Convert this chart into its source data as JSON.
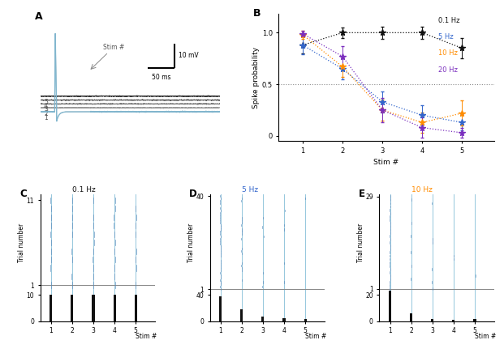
{
  "panel_A_label": "A",
  "panel_B_label": "B",
  "panel_C_label": "C",
  "panel_D_label": "D",
  "panel_E_label": "E",
  "B_stim": [
    1,
    2,
    3,
    4,
    5
  ],
  "B_0hz": [
    0.88,
    1.0,
    1.0,
    1.0,
    0.85
  ],
  "B_5hz": [
    0.88,
    0.65,
    0.33,
    0.2,
    0.13
  ],
  "B_10hz": [
    0.98,
    0.67,
    0.25,
    0.13,
    0.22
  ],
  "B_20hz": [
    0.99,
    0.77,
    0.25,
    0.08,
    0.03
  ],
  "B_0hz_err": [
    0.08,
    0.05,
    0.06,
    0.06,
    0.1
  ],
  "B_5hz_err": [
    0.09,
    0.1,
    0.1,
    0.1,
    0.08
  ],
  "B_10hz_err": [
    0.04,
    0.1,
    0.1,
    0.1,
    0.12
  ],
  "B_20hz_err": [
    0.03,
    0.1,
    0.12,
    0.1,
    0.05
  ],
  "color_0hz": "#111111",
  "color_5hz": "#3366CC",
  "color_10hz": "#FF8C00",
  "color_20hz": "#7B2FBE",
  "ylabel_B": "Spike probability",
  "xlabel_B": "Stim #",
  "C_title": "0.1 Hz",
  "D_title": "5 Hz",
  "E_title": "10 Hz",
  "C_raster_max_trial": 11,
  "D_raster_max_trial": 40,
  "E_raster_max_trial": 29,
  "C_hist_max": 10,
  "D_hist_max": 40,
  "E_hist_max": 20,
  "raster_stim_color": "#7ab8d4",
  "raster_dot_color": "#5588bb",
  "hist_color": "#111111",
  "scalebar_label_mv": "10 mV",
  "scalebar_label_ms": "50 ms",
  "bg_color": "#ffffff",
  "C_probs": [
    0.95,
    0.92,
    0.9,
    0.9,
    0.88
  ],
  "D_probs": [
    0.95,
    0.45,
    0.18,
    0.12,
    0.08
  ],
  "E_probs": [
    0.95,
    0.2,
    0.08,
    0.05,
    0.06
  ]
}
